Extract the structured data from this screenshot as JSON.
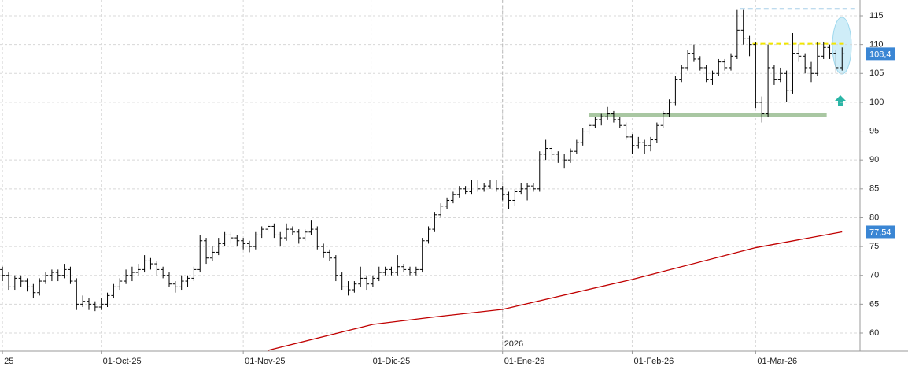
{
  "chart_data": {
    "type": "ohlc",
    "grid": true,
    "bar_color": "#000000",
    "ylim": [
      56.86,
      117.73
    ],
    "yticks": [
      60,
      65,
      70,
      75,
      80,
      85,
      90,
      95,
      100,
      105,
      110,
      115
    ],
    "xlim": [
      -0.4,
      138.9
    ],
    "xticks": [
      {
        "value": 0,
        "label": "25"
      },
      {
        "value": 16,
        "label": "01-Oct-25"
      },
      {
        "value": 39,
        "label": "01-Nov-25"
      },
      {
        "value": 59.7,
        "label": "01-Dic-25"
      },
      {
        "value": 81,
        "label": "01-Ene-26"
      },
      {
        "value": 102,
        "label": "01-Feb-26"
      },
      {
        "value": 122,
        "label": "01-Mar-26"
      }
    ],
    "year_marker": {
      "value": 81,
      "label": "2026"
    },
    "ohlc": [
      [
        71,
        71.5,
        69,
        70
      ],
      [
        70,
        70.5,
        67.5,
        68
      ],
      [
        68,
        70,
        67.5,
        69.5
      ],
      [
        69.5,
        70,
        68,
        69
      ],
      [
        69,
        69.5,
        67.2,
        68
      ],
      [
        68,
        68.5,
        66,
        67
      ],
      [
        67,
        69.5,
        66.5,
        69
      ],
      [
        69,
        70.5,
        68.5,
        70
      ],
      [
        70,
        71,
        69,
        70.5
      ],
      [
        70.5,
        71,
        69,
        70
      ],
      [
        70,
        72,
        69.5,
        71
      ],
      [
        71,
        71.5,
        68.5,
        69
      ],
      [
        69,
        69.5,
        64,
        65
      ],
      [
        65,
        66.5,
        64.5,
        65.5
      ],
      [
        65.5,
        66,
        64,
        65
      ],
      [
        65,
        65.5,
        63.8,
        64.5
      ],
      [
        64.5,
        66,
        64,
        65
      ],
      [
        65,
        67,
        64.5,
        66.5
      ],
      [
        66.5,
        68.5,
        66,
        68
      ],
      [
        68,
        69.5,
        67.5,
        69
      ],
      [
        69,
        71,
        68.5,
        70
      ],
      [
        70,
        71.5,
        69,
        70.5
      ],
      [
        70.5,
        72,
        70,
        71
      ],
      [
        71,
        73.5,
        70.5,
        72.5
      ],
      [
        72.5,
        73,
        71,
        72
      ],
      [
        72,
        72.5,
        70,
        71
      ],
      [
        71,
        71.5,
        69.5,
        70
      ],
      [
        70,
        70.5,
        68,
        68.5
      ],
      [
        68.5,
        69,
        67,
        68
      ],
      [
        68,
        70,
        67.5,
        69
      ],
      [
        69,
        70,
        68,
        69.5
      ],
      [
        69.5,
        71.5,
        69,
        71
      ],
      [
        71,
        77,
        70.5,
        76
      ],
      [
        76,
        76.5,
        72,
        73
      ],
      [
        73,
        75,
        72.5,
        74
      ],
      [
        74,
        76.5,
        73.5,
        75.5
      ],
      [
        75.5,
        77.5,
        75,
        77
      ],
      [
        77,
        77.5,
        75.5,
        76.5
      ],
      [
        76.5,
        77,
        75,
        76
      ],
      [
        76,
        76.5,
        74.5,
        75.5
      ],
      [
        75.5,
        76,
        74,
        75
      ],
      [
        75,
        77.5,
        74.5,
        77
      ],
      [
        77,
        78.5,
        76.5,
        78
      ],
      [
        78,
        79,
        77.5,
        78.5
      ],
      [
        78.5,
        79,
        76.5,
        77
      ],
      [
        77,
        77.5,
        75,
        76.5
      ],
      [
        76.5,
        79,
        76,
        78
      ],
      [
        78,
        78.5,
        77,
        77.5
      ],
      [
        77.5,
        78,
        75.5,
        76.5
      ],
      [
        76.5,
        78,
        76,
        77.5
      ],
      [
        77.5,
        79.5,
        77,
        78
      ],
      [
        78,
        78.5,
        74.5,
        75
      ],
      [
        75,
        75.5,
        73,
        74
      ],
      [
        74,
        74.5,
        72.5,
        73
      ],
      [
        73,
        73.5,
        69,
        70
      ],
      [
        70,
        70.5,
        67.5,
        68
      ],
      [
        68,
        69,
        66.5,
        67.5
      ],
      [
        67.5,
        69,
        67,
        68.5
      ],
      [
        68.5,
        71.5,
        68,
        69.5
      ],
      [
        69.5,
        70,
        67.5,
        68.5
      ],
      [
        68.5,
        70,
        68,
        69.5
      ],
      [
        69.5,
        71.5,
        69,
        70.5
      ],
      [
        70.5,
        71.5,
        70,
        71
      ],
      [
        71,
        71.5,
        70,
        70.5
      ],
      [
        70.5,
        73.5,
        70,
        71.5
      ],
      [
        71.5,
        72,
        70.5,
        71
      ],
      [
        71,
        71.5,
        70,
        70.5
      ],
      [
        70.5,
        71.5,
        70,
        71
      ],
      [
        71,
        76.5,
        70.5,
        76
      ],
      [
        76,
        78.5,
        75.5,
        78
      ],
      [
        78,
        81,
        77.5,
        80.5
      ],
      [
        80.5,
        82.5,
        80,
        82
      ],
      [
        82,
        83.5,
        81.5,
        83
      ],
      [
        83,
        84.5,
        82.5,
        84
      ],
      [
        84,
        85.5,
        83.5,
        85
      ],
      [
        85,
        85.5,
        84,
        84.5
      ],
      [
        84.5,
        86.5,
        84,
        86
      ],
      [
        86,
        86.5,
        84.5,
        85
      ],
      [
        85,
        86,
        84.5,
        85.5
      ],
      [
        85.5,
        86.5,
        85,
        86
      ],
      [
        86,
        86.5,
        84.5,
        85
      ],
      [
        85,
        85.5,
        83,
        84
      ],
      [
        84,
        84.5,
        81.5,
        83
      ],
      [
        83,
        85,
        82,
        84.5
      ],
      [
        84.5,
        86,
        84,
        85
      ],
      [
        85,
        86,
        83,
        85.5
      ],
      [
        85.5,
        86,
        84.5,
        85
      ],
      [
        85,
        91.5,
        84.5,
        91
      ],
      [
        91,
        93.5,
        90,
        92
      ],
      [
        92,
        92.5,
        90,
        91
      ],
      [
        91,
        91.5,
        89.5,
        90.5
      ],
      [
        90.5,
        91,
        88.5,
        90
      ],
      [
        90,
        92,
        89.5,
        91.5
      ],
      [
        91.5,
        93.5,
        91,
        93
      ],
      [
        93,
        95.5,
        92.5,
        95
      ],
      [
        95,
        96.5,
        94.5,
        96
      ],
      [
        96,
        97.5,
        95.5,
        97
      ],
      [
        97,
        98,
        96,
        97.5
      ],
      [
        97.5,
        99.2,
        97,
        98
      ],
      [
        98,
        98.5,
        96.5,
        97
      ],
      [
        97,
        97.5,
        95.5,
        96
      ],
      [
        96,
        96.5,
        93.5,
        94
      ],
      [
        94,
        94.5,
        91,
        92.5
      ],
      [
        92.5,
        94,
        92,
        93
      ],
      [
        93,
        93.5,
        91,
        92.5
      ],
      [
        92.5,
        94,
        91.5,
        93.5
      ],
      [
        93.5,
        96.5,
        93,
        96
      ],
      [
        96,
        98.5,
        95.5,
        98
      ],
      [
        98,
        100.5,
        97.5,
        100
      ],
      [
        100,
        104.5,
        99.5,
        104
      ],
      [
        104,
        106.5,
        103.5,
        106
      ],
      [
        106,
        109,
        105.5,
        108.5
      ],
      [
        108.5,
        110,
        107,
        107.5
      ],
      [
        107.5,
        108,
        105.5,
        106
      ],
      [
        106,
        106.5,
        103.5,
        104
      ],
      [
        104,
        105.5,
        103,
        105
      ],
      [
        105,
        107.5,
        104.5,
        107
      ],
      [
        107,
        107.5,
        105.5,
        106
      ],
      [
        106,
        108.5,
        105.5,
        108
      ],
      [
        108,
        116,
        107.5,
        112.5
      ],
      [
        112.5,
        116,
        110,
        111
      ],
      [
        111,
        111.5,
        108,
        110
      ],
      [
        110,
        110.5,
        99,
        100
      ],
      [
        100,
        101,
        96.5,
        98
      ],
      [
        98,
        110,
        97.5,
        106
      ],
      [
        106,
        106.5,
        103,
        104
      ],
      [
        104,
        106,
        103.5,
        105
      ],
      [
        105,
        105.5,
        100,
        102
      ],
      [
        102,
        112,
        101.5,
        108.5
      ],
      [
        108.5,
        110,
        107,
        108
      ],
      [
        108,
        108.5,
        105,
        106
      ],
      [
        106,
        107,
        103.5,
        105
      ],
      [
        105,
        110.5,
        104.5,
        108
      ],
      [
        108,
        110.5,
        107.5,
        109.5
      ],
      [
        109.5,
        110,
        107.5,
        108.5
      ],
      [
        108.5,
        109,
        105,
        106
      ],
      [
        106,
        109.5,
        105.5,
        108.4
      ]
    ],
    "moving_average": {
      "color": "#c00000",
      "x": [
        43,
        60,
        70,
        81,
        102,
        122,
        136
      ],
      "values": [
        57,
        61.5,
        62.8,
        64.1,
        69.3,
        74.8,
        77.54
      ]
    },
    "price_tags": [
      {
        "value": 108.4,
        "label": "108,4"
      },
      {
        "value": 77.54,
        "label": "77,54"
      }
    ],
    "price_tag_color": "#3a86d4",
    "levels": [
      {
        "value": 116.2,
        "from": 119.5,
        "to": 138.5,
        "color": "#a8cfe8",
        "dashed": true,
        "width": 2
      },
      {
        "value": 110.2,
        "from": 121.5,
        "to": 136.8,
        "color": "#f2e600",
        "dashed": true,
        "width": 3
      },
      {
        "value": 97.8,
        "from": 95,
        "to": 133.5,
        "color": "#a9c7a2",
        "dashed": false,
        "width": 5
      }
    ]
  }
}
